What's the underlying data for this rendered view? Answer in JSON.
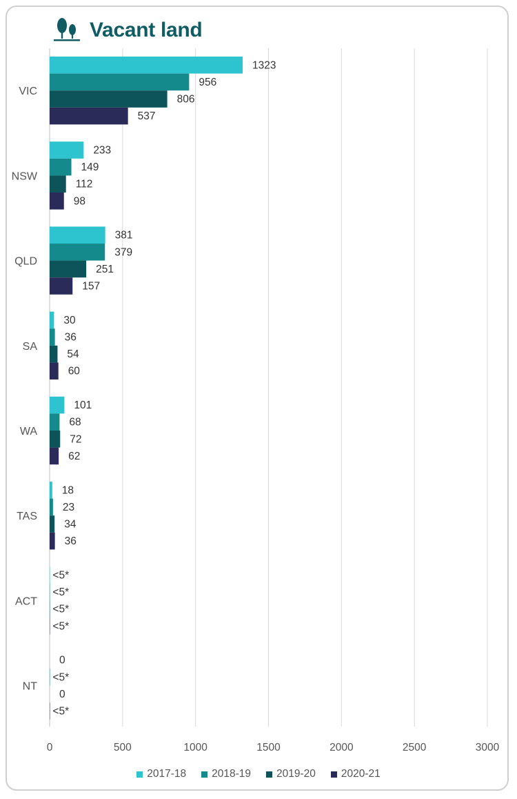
{
  "chart_data": {
    "type": "bar",
    "orientation": "horizontal",
    "title": "Vacant land",
    "title_icon": "trees-icon",
    "categories": [
      "VIC",
      "NSW",
      "QLD",
      "SA",
      "WA",
      "TAS",
      "ACT",
      "NT"
    ],
    "series": [
      {
        "name": "2017-18",
        "color": "#2ec4cf",
        "values": [
          1323,
          233,
          381,
          30,
          101,
          18,
          2,
          0
        ],
        "labels": [
          "1323",
          "233",
          "381",
          "30",
          "101",
          "18",
          "<5*",
          "0"
        ]
      },
      {
        "name": "2018-19",
        "color": "#148a8c",
        "values": [
          956,
          149,
          379,
          36,
          68,
          23,
          2,
          2
        ],
        "labels": [
          "956",
          "149",
          "379",
          "36",
          "68",
          "23",
          "<5*",
          "<5*"
        ]
      },
      {
        "name": "2019-20",
        "color": "#0c5459",
        "values": [
          806,
          112,
          251,
          54,
          72,
          34,
          2,
          0
        ],
        "labels": [
          "806",
          "112",
          "251",
          "54",
          "72",
          "34",
          "<5*",
          "0"
        ]
      },
      {
        "name": "2020-21",
        "color": "#2a2b58",
        "values": [
          537,
          98,
          157,
          60,
          62,
          36,
          2,
          2
        ],
        "labels": [
          "537",
          "98",
          "157",
          "60",
          "62",
          "36",
          "<5*",
          "<5*"
        ]
      }
    ],
    "xlim": [
      0,
      3000
    ],
    "xticks": [
      "0",
      "500",
      "1000",
      "1500",
      "2000",
      "2500",
      "3000"
    ],
    "grid": "vertical",
    "legend_position": "bottom"
  }
}
